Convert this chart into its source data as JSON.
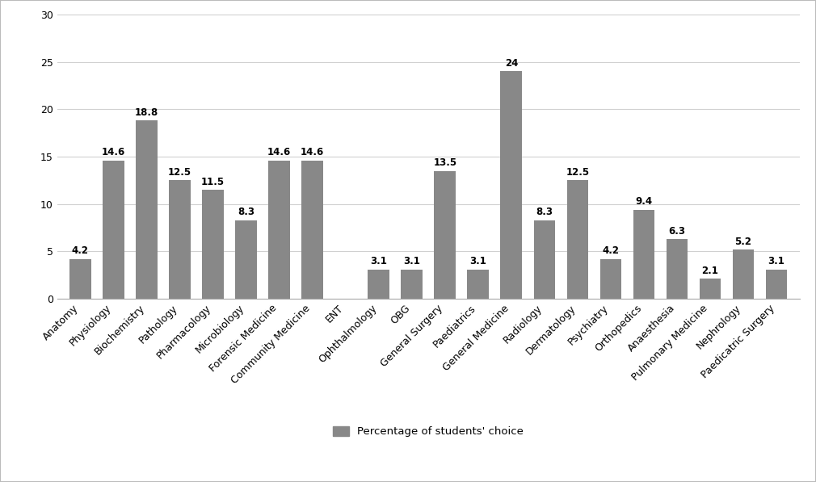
{
  "categories": [
    "Anatomy",
    "Physiology",
    "Biochemistry",
    "Pathology",
    "Pharmacology",
    "Microbiology",
    "Forensic Medicine",
    "Community Medicine",
    "ENT",
    "Ophthalmology",
    "OBG",
    "General Surgery",
    "Paediatrics",
    "General Medicine",
    "Radiology",
    "Dermatology",
    "Psychiatry",
    "Orthopedics",
    "Anaesthesia",
    "Pulmonary Medicine",
    "Nephrology",
    "Paedicatric Surgery"
  ],
  "values": [
    4.2,
    14.6,
    18.8,
    12.5,
    11.5,
    8.3,
    14.6,
    14.6,
    0,
    3.1,
    3.1,
    13.5,
    3.1,
    24,
    8.3,
    12.5,
    4.2,
    9.4,
    6.3,
    2.1,
    5.2,
    3.1
  ],
  "bar_color": "#888888",
  "ylim": [
    0,
    30
  ],
  "yticks": [
    0,
    5,
    10,
    15,
    20,
    25,
    30
  ],
  "legend_label": "Percentage of students' choice",
  "legend_color": "#888888",
  "background_color": "#ffffff",
  "grid_color": "#d0d0d0",
  "figure_border_color": "#cccccc",
  "label_fontsize": 9.5,
  "tick_fontsize": 9,
  "value_fontsize": 8.5,
  "figsize": [
    10.1,
    5.97
  ],
  "dpi": 100
}
